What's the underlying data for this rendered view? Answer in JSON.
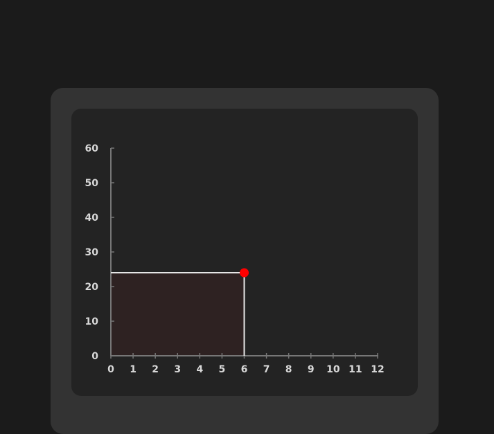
{
  "chart_data": {
    "type": "area",
    "x_ticks": [
      "0",
      "1",
      "2",
      "3",
      "4",
      "5",
      "6",
      "7",
      "8",
      "9",
      "10",
      "11",
      "12"
    ],
    "y_ticks": [
      "0",
      "10",
      "20",
      "30",
      "40",
      "50",
      "60"
    ],
    "xlim": [
      0,
      12
    ],
    "ylim": [
      0,
      60
    ],
    "grid": false,
    "point": {
      "x": 6,
      "y": 24
    },
    "colors": {
      "axis": "#777777",
      "guide": "#e6e6e6",
      "fill": "#2e2222",
      "point": "#ff0000",
      "tick_label": "#d8d8d8"
    }
  }
}
